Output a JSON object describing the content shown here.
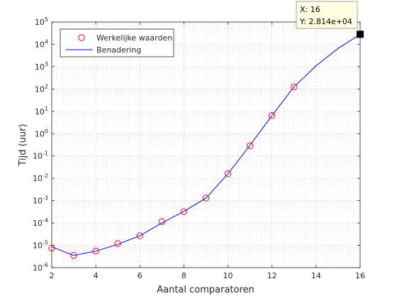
{
  "chart_data": {
    "type": "line",
    "xlabel": "Aantal comparatoren",
    "ylabel": "Tijd (uur)",
    "xlim": [
      2,
      16
    ],
    "ylim": [
      1e-06,
      100000.0
    ],
    "yscale": "log",
    "grid": true,
    "legend_placement": "top-left",
    "x_ticks": [
      "2",
      "4",
      "6",
      "8",
      "10",
      "12",
      "14",
      "16"
    ],
    "y_ticks": [
      {
        "base": "10",
        "exp": "-6"
      },
      {
        "base": "10",
        "exp": "-5"
      },
      {
        "base": "10",
        "exp": "-4"
      },
      {
        "base": "10",
        "exp": "-3"
      },
      {
        "base": "10",
        "exp": "-2"
      },
      {
        "base": "10",
        "exp": "-1"
      },
      {
        "base": "10",
        "exp": "0"
      },
      {
        "base": "10",
        "exp": "1"
      },
      {
        "base": "10",
        "exp": "2"
      },
      {
        "base": "10",
        "exp": "3"
      },
      {
        "base": "10",
        "exp": "4"
      },
      {
        "base": "10",
        "exp": "5"
      }
    ],
    "series": [
      {
        "name": "Werkelijke waarden",
        "style": "markers",
        "color": "#ff0000",
        "marker": "circle",
        "x": [
          2,
          3,
          4,
          5,
          6,
          7,
          8,
          9,
          10,
          11,
          12,
          13
        ],
        "y": [
          7.5e-06,
          3.5e-06,
          5.5e-06,
          1.2e-05,
          2.7e-05,
          0.000115,
          0.00032,
          0.0013,
          0.016,
          0.29,
          6.5,
          125
        ]
      },
      {
        "name": "Benadering",
        "style": "line",
        "color": "#0000ff",
        "x": [
          2,
          3,
          4,
          5,
          6,
          7,
          8,
          9,
          10,
          11,
          12,
          13,
          14,
          15,
          16
        ],
        "y": [
          8.5e-06,
          3.5e-06,
          5.5e-06,
          1.1e-05,
          2.7e-05,
          0.0001,
          0.00033,
          0.0013,
          0.016,
          0.3,
          6.5,
          125,
          1100,
          6500,
          28140
        ]
      }
    ],
    "datatip": {
      "x_text": "X: 16",
      "y_text": "Y: 2.814e+04",
      "x": 16,
      "y": 28140
    }
  }
}
